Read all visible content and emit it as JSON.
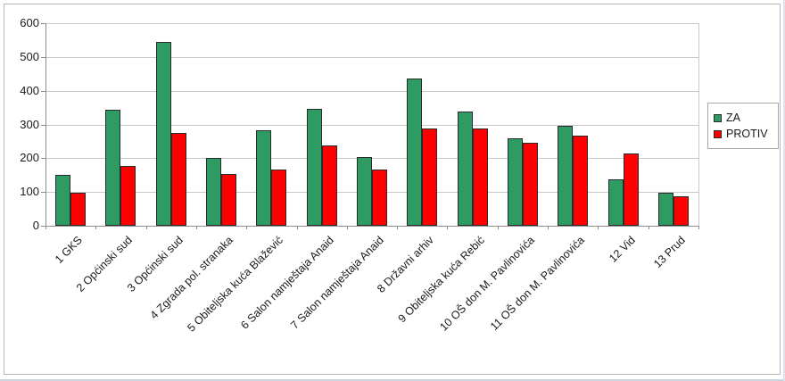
{
  "chart_data": {
    "type": "bar",
    "title": "",
    "xlabel": "",
    "ylabel": "",
    "categories": [
      "1 GKS",
      "2 Općinski sud",
      "3 Općinski sud",
      "4 Zgrada pol. stranaka",
      "5 Obiteljska kuća Blažević",
      "6 Salon namještaja Anaid",
      "7 Salon namještaja Anaid",
      "8 Državni arhiv",
      "9 Obiteljska kuća Rebić",
      "10 OŠ don M. Pavlinovića",
      "11 OŠ don M. Pavlinovića",
      "12 Vid",
      "13 Prud"
    ],
    "series": [
      {
        "name": "ZA",
        "color": "#2e9b62",
        "values": [
          150,
          344,
          545,
          201,
          282,
          347,
          203,
          437,
          339,
          259,
          297,
          137,
          97
        ]
      },
      {
        "name": "PROTIV",
        "color": "#fe0000",
        "values": [
          97,
          176,
          275,
          152,
          166,
          239,
          166,
          288,
          287,
          245,
          267,
          213,
          86
        ]
      }
    ],
    "ylim": [
      0,
      600
    ],
    "ytick_step": 100,
    "ytick_labels": [
      "0",
      "100",
      "200",
      "300",
      "400",
      "500",
      "600"
    ],
    "grid": "horizontal",
    "legend_position": "right",
    "x_labels_rotation_deg": -45
  },
  "legend": {
    "items": [
      {
        "label": "ZA",
        "color": "#2e9b62"
      },
      {
        "label": "PROTIV",
        "color": "#fe0000"
      }
    ]
  },
  "colors": {
    "gridline": "#c9c9c9",
    "axis": "#8e8e8e",
    "bar_border": "#2b2b2b",
    "frame_border": "#b9b9b9",
    "text": "#1a1a1a",
    "background": "#ffffff"
  }
}
